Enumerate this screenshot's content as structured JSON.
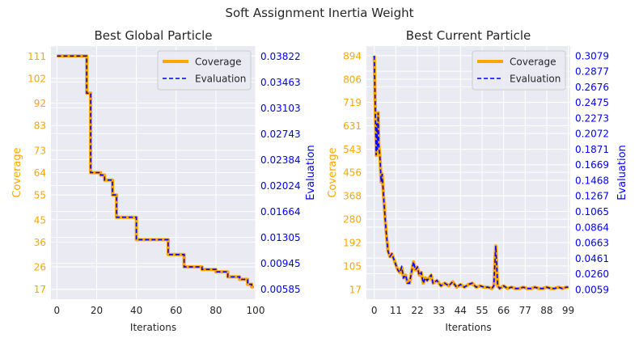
{
  "figure": {
    "suptitle": "Soft Assignment Inertia Weight"
  },
  "colors": {
    "coverage": "#FFA500",
    "evaluation": "#0000FF",
    "plot_bg": "#EAEAF2",
    "grid": "#FFFFFF"
  },
  "chart_data": [
    {
      "type": "line",
      "title": "Best Global Particle",
      "xlabel": "Iterations",
      "ylabel": "Coverage",
      "ylabel_right": "Evaluation",
      "xlim": [
        -3,
        100
      ],
      "ylim": [
        13,
        115
      ],
      "x_ticks": [
        0,
        20,
        40,
        60,
        80,
        100
      ],
      "y_ticks": [
        17,
        26,
        36,
        45,
        55,
        64,
        73,
        83,
        92,
        102,
        111
      ],
      "y_ticks_right": [
        "0.00585",
        "0.00945",
        "0.01305",
        "0.01664",
        "0.02024",
        "0.02384",
        "0.02743",
        "0.03103",
        "0.03463",
        "0.03822"
      ],
      "grid": true,
      "legend": "top-right",
      "series": [
        {
          "name": "Coverage",
          "x": [
            0,
            14,
            15,
            16,
            17,
            21,
            22,
            24,
            26,
            28,
            30,
            38,
            40,
            54,
            56,
            62,
            64,
            72,
            73,
            78,
            80,
            84,
            86,
            90,
            92,
            96,
            98,
            99
          ],
          "y": [
            111,
            111,
            96,
            96,
            64,
            64,
            63,
            61,
            61,
            55,
            46,
            46,
            37,
            37,
            31,
            31,
            26,
            26,
            25,
            25,
            24,
            24,
            22,
            22,
            21,
            19,
            18,
            18
          ]
        },
        {
          "name": "Evaluation",
          "x": [
            0,
            14,
            15,
            16,
            17,
            21,
            22,
            24,
            26,
            28,
            30,
            38,
            40,
            54,
            56,
            62,
            64,
            72,
            73,
            78,
            80,
            84,
            86,
            90,
            92,
            96,
            98,
            99
          ],
          "y": [
            111,
            111,
            96,
            96,
            64,
            64,
            63,
            61,
            61,
            55,
            46,
            46,
            37,
            37,
            31,
            31,
            26,
            26,
            25,
            25,
            24,
            24,
            22,
            22,
            21,
            19,
            18,
            18
          ]
        }
      ]
    },
    {
      "type": "line",
      "title": "Best Current Particle",
      "xlabel": "Iterations",
      "ylabel": "Coverage",
      "ylabel_right": "Evaluation",
      "xlim": [
        -4,
        100
      ],
      "ylim": [
        -20,
        930
      ],
      "x_ticks": [
        0,
        11,
        22,
        33,
        44,
        55,
        66,
        77,
        88,
        99
      ],
      "y_ticks": [
        17,
        105,
        192,
        280,
        368,
        456,
        543,
        631,
        719,
        806,
        894
      ],
      "y_ticks_right": [
        "0.0059",
        "0.0260",
        "0.0461",
        "0.0663",
        "0.0864",
        "0.1065",
        "0.1267",
        "0.1468",
        "0.1669",
        "0.1871",
        "0.2072",
        "0.2273",
        "0.2475",
        "0.2676",
        "0.2877",
        "0.3079"
      ],
      "grid": true,
      "legend": "top-right",
      "series": [
        {
          "name": "Coverage",
          "x": [
            0,
            1,
            1.3,
            1.6,
            2,
            2.3,
            2.7,
            3,
            3.5,
            4,
            5,
            6,
            7,
            8,
            9,
            10,
            11,
            12,
            13,
            14,
            15,
            16,
            17,
            18,
            19,
            20,
            21,
            22,
            23,
            24,
            25,
            26,
            27,
            28,
            29,
            30,
            32,
            34,
            36,
            38,
            40,
            42,
            44,
            46,
            48,
            50,
            52,
            54,
            56,
            58,
            60,
            61,
            62,
            63,
            64,
            65,
            66,
            68,
            70,
            72,
            74,
            76,
            78,
            80,
            82,
            84,
            86,
            88,
            90,
            92,
            94,
            96,
            98,
            99
          ],
          "y": [
            894,
            520,
            640,
            540,
            680,
            560,
            530,
            500,
            420,
            450,
            340,
            240,
            160,
            140,
            150,
            130,
            110,
            90,
            80,
            100,
            60,
            70,
            40,
            40,
            80,
            120,
            90,
            100,
            70,
            80,
            40,
            60,
            50,
            60,
            70,
            40,
            50,
            30,
            40,
            30,
            45,
            25,
            35,
            25,
            35,
            40,
            25,
            30,
            25,
            25,
            20,
            30,
            180,
            30,
            20,
            25,
            30,
            20,
            25,
            20,
            20,
            25,
            20,
            20,
            25,
            20,
            20,
            25,
            20,
            20,
            25,
            20,
            25,
            25
          ]
        },
        {
          "name": "Evaluation",
          "x": [
            0,
            1,
            1.3,
            1.6,
            2,
            2.3,
            2.7,
            3,
            3.5,
            4,
            5,
            6,
            7,
            8,
            9,
            10,
            11,
            12,
            13,
            14,
            15,
            16,
            17,
            18,
            19,
            20,
            21,
            22,
            23,
            24,
            25,
            26,
            27,
            28,
            29,
            30,
            32,
            34,
            36,
            38,
            40,
            42,
            44,
            46,
            48,
            50,
            52,
            54,
            56,
            58,
            60,
            61,
            62,
            63,
            64,
            65,
            66,
            68,
            70,
            72,
            74,
            76,
            78,
            80,
            82,
            84,
            86,
            88,
            90,
            92,
            94,
            96,
            98,
            99
          ],
          "y": [
            894,
            520,
            640,
            540,
            680,
            560,
            530,
            500,
            420,
            450,
            340,
            240,
            160,
            140,
            150,
            130,
            110,
            90,
            80,
            100,
            60,
            70,
            40,
            40,
            80,
            120,
            90,
            100,
            70,
            80,
            40,
            60,
            50,
            60,
            70,
            40,
            50,
            30,
            40,
            30,
            45,
            25,
            35,
            25,
            35,
            40,
            25,
            30,
            25,
            25,
            20,
            30,
            180,
            30,
            20,
            25,
            30,
            20,
            25,
            20,
            20,
            25,
            20,
            20,
            25,
            20,
            20,
            25,
            20,
            20,
            25,
            20,
            25,
            25
          ]
        }
      ]
    }
  ]
}
